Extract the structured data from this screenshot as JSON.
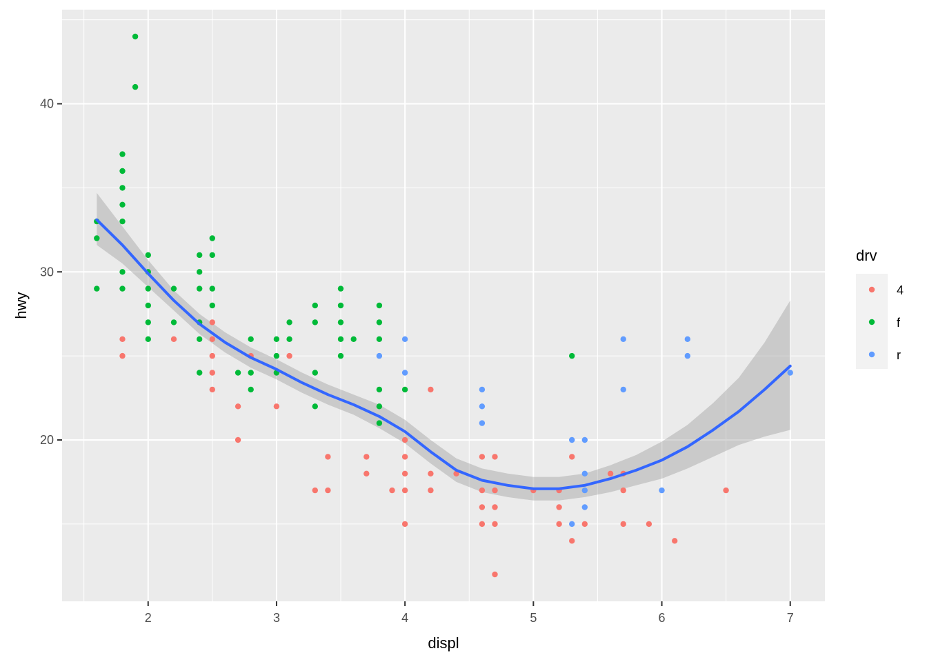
{
  "chart_data": {
    "type": "scatter",
    "xlabel": "displ",
    "ylabel": "hwy",
    "xlim": [
      1.33,
      7.27
    ],
    "ylim": [
      10.4,
      45.6
    ],
    "x_ticks": [
      2,
      3,
      4,
      5,
      6,
      7
    ],
    "x_tick_labels": [
      "2",
      "3",
      "4",
      "5",
      "6",
      "7"
    ],
    "y_ticks": [
      20,
      30,
      40
    ],
    "y_tick_labels": [
      "20",
      "30",
      "40"
    ],
    "grid": true,
    "legend": {
      "title": "drv",
      "placement": "right",
      "entries": [
        {
          "label": "4",
          "color": "#F8766D"
        },
        {
          "label": "f",
          "color": "#00BA38"
        },
        {
          "label": "r",
          "color": "#619CFF"
        }
      ]
    },
    "series": [
      {
        "name": "f",
        "color": "#00BA38",
        "points": [
          [
            1.6,
            33
          ],
          [
            1.6,
            32
          ],
          [
            1.6,
            29
          ],
          [
            1.8,
            37
          ],
          [
            1.8,
            36
          ],
          [
            1.8,
            35
          ],
          [
            1.8,
            34
          ],
          [
            1.8,
            33
          ],
          [
            1.8,
            30
          ],
          [
            1.8,
            29
          ],
          [
            1.9,
            44
          ],
          [
            1.9,
            41
          ],
          [
            2.0,
            31
          ],
          [
            2.0,
            30
          ],
          [
            2.0,
            29
          ],
          [
            2.0,
            28
          ],
          [
            2.0,
            27
          ],
          [
            2.0,
            26
          ],
          [
            2.2,
            29
          ],
          [
            2.2,
            27
          ],
          [
            2.4,
            31
          ],
          [
            2.4,
            30
          ],
          [
            2.4,
            29
          ],
          [
            2.4,
            27
          ],
          [
            2.4,
            26
          ],
          [
            2.4,
            24
          ],
          [
            2.5,
            32
          ],
          [
            2.5,
            31
          ],
          [
            2.5,
            29
          ],
          [
            2.5,
            28
          ],
          [
            2.7,
            24
          ],
          [
            2.8,
            26
          ],
          [
            2.8,
            24
          ],
          [
            2.8,
            23
          ],
          [
            3.0,
            26
          ],
          [
            3.0,
            25
          ],
          [
            3.0,
            24
          ],
          [
            3.1,
            27
          ],
          [
            3.1,
            26
          ],
          [
            3.3,
            28
          ],
          [
            3.3,
            27
          ],
          [
            3.3,
            24
          ],
          [
            3.3,
            22
          ],
          [
            3.5,
            29
          ],
          [
            3.5,
            28
          ],
          [
            3.5,
            27
          ],
          [
            3.5,
            26
          ],
          [
            3.5,
            25
          ],
          [
            3.6,
            26
          ],
          [
            3.8,
            28
          ],
          [
            3.8,
            27
          ],
          [
            3.8,
            26
          ],
          [
            3.8,
            23
          ],
          [
            3.8,
            22
          ],
          [
            3.8,
            21
          ],
          [
            4.0,
            23
          ],
          [
            5.3,
            25
          ]
        ]
      },
      {
        "name": "4",
        "color": "#F8766D",
        "points": [
          [
            1.8,
            26
          ],
          [
            1.8,
            25
          ],
          [
            2.2,
            26
          ],
          [
            2.5,
            27
          ],
          [
            2.5,
            26
          ],
          [
            2.5,
            25
          ],
          [
            2.5,
            24
          ],
          [
            2.5,
            23
          ],
          [
            2.7,
            22
          ],
          [
            2.7,
            20
          ],
          [
            2.8,
            25
          ],
          [
            3.0,
            22
          ],
          [
            3.1,
            25
          ],
          [
            3.3,
            17
          ],
          [
            3.4,
            19
          ],
          [
            3.4,
            17
          ],
          [
            3.7,
            19
          ],
          [
            3.7,
            18
          ],
          [
            3.9,
            17
          ],
          [
            4.0,
            20
          ],
          [
            4.0,
            19
          ],
          [
            4.0,
            18
          ],
          [
            4.0,
            17
          ],
          [
            4.0,
            15
          ],
          [
            4.2,
            23
          ],
          [
            4.2,
            18
          ],
          [
            4.2,
            17
          ],
          [
            4.4,
            18
          ],
          [
            4.6,
            19
          ],
          [
            4.6,
            17
          ],
          [
            4.6,
            16
          ],
          [
            4.6,
            15
          ],
          [
            4.7,
            19
          ],
          [
            4.7,
            17
          ],
          [
            4.7,
            16
          ],
          [
            4.7,
            15
          ],
          [
            4.7,
            12
          ],
          [
            5.0,
            17
          ],
          [
            5.2,
            17
          ],
          [
            5.2,
            16
          ],
          [
            5.2,
            15
          ],
          [
            5.3,
            19
          ],
          [
            5.3,
            14
          ],
          [
            5.4,
            15
          ],
          [
            5.6,
            18
          ],
          [
            5.7,
            18
          ],
          [
            5.7,
            17
          ],
          [
            5.7,
            15
          ],
          [
            5.9,
            15
          ],
          [
            6.1,
            14
          ],
          [
            6.5,
            17
          ]
        ]
      },
      {
        "name": "r",
        "color": "#619CFF",
        "points": [
          [
            3.8,
            25
          ],
          [
            4.0,
            26
          ],
          [
            4.0,
            24
          ],
          [
            4.6,
            23
          ],
          [
            4.6,
            22
          ],
          [
            4.6,
            21
          ],
          [
            5.3,
            20
          ],
          [
            5.3,
            15
          ],
          [
            5.4,
            20
          ],
          [
            5.4,
            18
          ],
          [
            5.4,
            17
          ],
          [
            5.4,
            16
          ],
          [
            5.7,
            26
          ],
          [
            5.7,
            23
          ],
          [
            6.0,
            17
          ],
          [
            6.2,
            26
          ],
          [
            6.2,
            25
          ],
          [
            7.0,
            24
          ]
        ]
      }
    ],
    "smooth": {
      "method": "loess",
      "color": "#3366FF",
      "band_color": "#999999",
      "x": [
        1.6,
        1.8,
        2.0,
        2.2,
        2.4,
        2.6,
        2.8,
        3.0,
        3.2,
        3.4,
        3.6,
        3.8,
        4.0,
        4.2,
        4.4,
        4.6,
        4.8,
        5.0,
        5.2,
        5.4,
        5.6,
        5.8,
        6.0,
        6.2,
        6.4,
        6.6,
        6.8,
        7.0
      ],
      "y": [
        33.1,
        31.6,
        29.9,
        28.3,
        26.9,
        25.8,
        24.9,
        24.2,
        23.4,
        22.7,
        22.1,
        21.4,
        20.5,
        19.3,
        18.2,
        17.6,
        17.3,
        17.1,
        17.1,
        17.3,
        17.7,
        18.2,
        18.8,
        19.6,
        20.6,
        21.7,
        23.0,
        24.4
      ],
      "ymin": [
        31.6,
        30.5,
        29.1,
        27.7,
        26.3,
        25.2,
        24.3,
        23.6,
        22.8,
        22.1,
        21.5,
        20.7,
        19.8,
        18.6,
        17.5,
        16.9,
        16.6,
        16.4,
        16.4,
        16.6,
        16.9,
        17.3,
        17.7,
        18.3,
        19.0,
        19.7,
        20.2,
        20.6
      ],
      "ymax": [
        34.7,
        32.7,
        30.7,
        28.9,
        27.5,
        26.4,
        25.5,
        24.8,
        24.0,
        23.3,
        22.7,
        22.1,
        21.2,
        20.0,
        18.9,
        18.3,
        18.0,
        17.8,
        17.8,
        18.0,
        18.5,
        19.1,
        19.9,
        20.9,
        22.2,
        23.7,
        25.8,
        28.3
      ]
    }
  }
}
